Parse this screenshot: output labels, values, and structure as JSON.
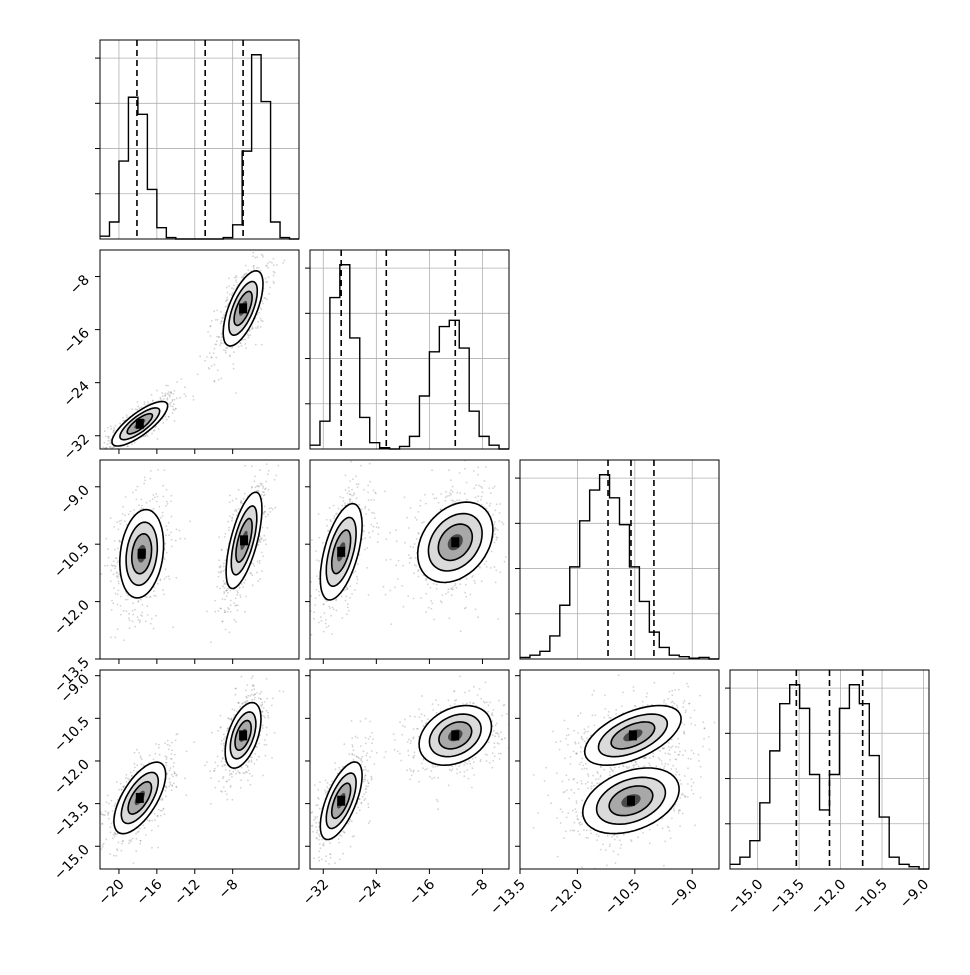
{
  "chart_data": {
    "type": "corner",
    "grid": true,
    "variables": [
      {
        "range": [
          -22,
          -1
        ],
        "ticks": [
          -20,
          -16,
          -12,
          -8
        ],
        "tick_labels": [
          "−20",
          "−16",
          "−12",
          "−8"
        ],
        "hist": {
          "edges_start": -22,
          "bin_width": 1,
          "counts": [
            0.02,
            0.12,
            0.55,
            1.0,
            0.88,
            0.35,
            0.08,
            0.01,
            0,
            0,
            0,
            0,
            0,
            0.01,
            0.1,
            0.62,
            1.3,
            0.97,
            0.12,
            0.01,
            0
          ]
        },
        "quantiles": [
          -18.1,
          -10.9,
          -6.9
        ]
      },
      {
        "range": [
          -34,
          -4
        ],
        "ticks": [
          -32,
          -24,
          -16,
          -8
        ],
        "tick_labels": [
          "−32",
          "−24",
          "−16",
          "−8"
        ],
        "hist": {
          "edges_start": -34,
          "bin_width": 1.5,
          "counts": [
            0.03,
            0.22,
            1.2,
            1.46,
            0.88,
            0.25,
            0.05,
            0.01,
            0,
            0.02,
            0.1,
            0.42,
            0.77,
            0.97,
            1.02,
            0.8,
            0.3,
            0.1,
            0.03,
            0
          ]
        },
        "quantiles": [
          -29.3,
          -22.5,
          -12.1
        ]
      },
      {
        "range": [
          -13.5,
          -8.3
        ],
        "ticks": [
          -13.5,
          -12.0,
          -10.5,
          -9.0
        ],
        "tick_labels": [
          "−13.5",
          "−12.0",
          "−10.5",
          "−9.0"
        ],
        "hist": {
          "edges_start": -13.5,
          "bin_width": 0.26,
          "counts": [
            0.02,
            0.05,
            0.1,
            0.3,
            0.7,
            1.2,
            1.8,
            2.2,
            2.4,
            2.1,
            1.75,
            1.2,
            0.75,
            0.35,
            0.15,
            0.05,
            0.03,
            0.01,
            0.02,
            0
          ]
        },
        "quantiles": [
          -11.2,
          -10.6,
          -10.0
        ]
      },
      {
        "range": [
          -16,
          -8.8
        ],
        "ticks": [
          -15.0,
          -13.5,
          -12.0,
          -10.5,
          -9.0
        ],
        "tick_labels": [
          "−15.0",
          "−13.5",
          "−12.0",
          "−10.5",
          "−9.0"
        ],
        "hist": {
          "edges_start": -16,
          "bin_width": 0.36,
          "counts": [
            0.02,
            0.05,
            0.12,
            0.28,
            0.5,
            0.7,
            0.78,
            0.68,
            0.4,
            0.25,
            0.4,
            0.68,
            0.78,
            0.7,
            0.48,
            0.22,
            0.05,
            0.02,
            0.01,
            0
          ]
        },
        "quantiles": [
          -13.6,
          -12.4,
          -11.2
        ]
      }
    ],
    "y_ticks_rows": {
      "1": {
        "ticks": [
          -32,
          -24,
          -16,
          -8
        ],
        "tick_labels": [
          "−32",
          "−24",
          "−16",
          "−8"
        ]
      },
      "2": {
        "ticks": [
          -13.5,
          -12.0,
          -10.5,
          -9.0
        ],
        "tick_labels": [
          "−13.5",
          "−12.0",
          "−10.5",
          "−9.0"
        ]
      },
      "3": {
        "ticks": [
          -15.0,
          -13.5,
          -12.0,
          -10.5,
          -9.0
        ],
        "tick_labels": [
          "−15.0",
          "−13.5",
          "−12.0",
          "−10.5",
          "−9.0"
        ]
      }
    },
    "y_ranges_rows": {
      "1": [
        -34,
        -4
      ],
      "2": [
        -13.5,
        -8.3
      ],
      "3": [
        -15.8,
        -8.8
      ]
    },
    "blobs": [
      {
        "row": 1,
        "col": 0,
        "x": -17.8,
        "y": -30.2,
        "sx": 1.4,
        "sy": 1.6,
        "rho": 0.8,
        "weight": 1.0
      },
      {
        "row": 1,
        "col": 0,
        "x": -6.9,
        "y": -12.8,
        "sx": 1.0,
        "sy": 2.7,
        "rho": 0.65,
        "weight": 1.0
      },
      {
        "row": 2,
        "col": 0,
        "x": -17.6,
        "y": -10.75,
        "sx": 1.1,
        "sy": 0.55,
        "rho": 0.2,
        "weight": 1.0
      },
      {
        "row": 2,
        "col": 0,
        "x": -6.8,
        "y": -10.4,
        "sx": 0.9,
        "sy": 0.6,
        "rho": 0.65,
        "weight": 1.0
      },
      {
        "row": 2,
        "col": 1,
        "x": -29.3,
        "y": -10.7,
        "sx": 1.5,
        "sy": 0.6,
        "rho": 0.55,
        "weight": 1.0
      },
      {
        "row": 2,
        "col": 1,
        "x": -12.1,
        "y": -10.45,
        "sx": 2.7,
        "sy": 0.5,
        "rho": 0.3,
        "weight": 1.0
      },
      {
        "row": 3,
        "col": 0,
        "x": -17.8,
        "y": -13.3,
        "sx": 1.3,
        "sy": 0.6,
        "rho": 0.65,
        "weight": 1.0
      },
      {
        "row": 3,
        "col": 0,
        "x": -6.9,
        "y": -11.1,
        "sx": 0.9,
        "sy": 0.55,
        "rho": 0.5,
        "weight": 1.0
      },
      {
        "row": 3,
        "col": 1,
        "x": -29.3,
        "y": -13.4,
        "sx": 1.5,
        "sy": 0.65,
        "rho": 0.65,
        "weight": 1.0
      },
      {
        "row": 3,
        "col": 1,
        "x": -12.1,
        "y": -11.1,
        "sx": 2.6,
        "sy": 0.5,
        "rho": 0.3,
        "weight": 1.0
      },
      {
        "row": 3,
        "col": 2,
        "x": -10.6,
        "y": -13.4,
        "sx": 0.6,
        "sy": 0.55,
        "rho": 0.35,
        "weight": 1.0
      },
      {
        "row": 3,
        "col": 2,
        "x": -10.55,
        "y": -11.1,
        "sx": 0.6,
        "sy": 0.5,
        "rho": 0.55,
        "weight": 1.0
      }
    ]
  }
}
